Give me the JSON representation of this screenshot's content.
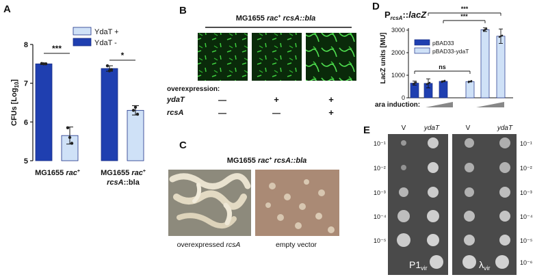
{
  "panels": {
    "A": {
      "letter": "A"
    },
    "B": {
      "letter": "B",
      "title": "MG1655 rac⁺ rcsA::bla",
      "row_header": "overexpression:",
      "rows": [
        {
          "label": "ydaT",
          "marks": [
            "—",
            "+",
            "+"
          ]
        },
        {
          "label": "rcsA",
          "marks": [
            "—",
            "—",
            "+"
          ]
        }
      ]
    },
    "C": {
      "letter": "C",
      "title": "MG1655 rac⁺ rcsA::bla",
      "captions": [
        "overexpressed rcsA",
        "empty vector"
      ]
    },
    "D": {
      "letter": "D"
    },
    "E": {
      "letter": "E",
      "col_labels": [
        "V",
        "ydaT",
        "V",
        "ydaT"
      ],
      "dilutions_left": [
        "10⁻¹",
        "10⁻²",
        "10⁻³",
        "10⁻⁴",
        "10⁻⁵"
      ],
      "dilutions_right": [
        "10⁻¹",
        "10⁻²",
        "10⁻³",
        "10⁻⁴",
        "10⁻⁵",
        "10⁻⁶"
      ],
      "phage_left": "P1vir",
      "phage_right": "λvir"
    }
  },
  "chart_data": [
    {
      "type": "bar",
      "panel": "A",
      "ylabel": "CFUs [Log10]",
      "ylim": [
        5,
        8
      ],
      "yticks": [
        "5",
        "6",
        "7",
        "8"
      ],
      "categories": [
        "MG1655 rac⁺",
        "MG1655 rac⁺ rcsA::bla"
      ],
      "series": [
        {
          "name": "YdaT +",
          "color": "#cfe1f7",
          "values": [
            5.65,
            6.3
          ],
          "errors": [
            0.22,
            0.12
          ],
          "points": [
            [
              5.85,
              5.6,
              5.45
            ],
            [
              6.3,
              6.38,
              6.2
            ]
          ]
        },
        {
          "name": "YdaT -",
          "color": "#1f3fb0",
          "values": [
            7.5,
            7.38
          ],
          "errors": [
            0.02,
            0.07
          ],
          "points": [
            [
              7.51,
              7.5,
              7.5
            ],
            [
              7.45,
              7.32,
              7.35
            ]
          ]
        }
      ],
      "significance": [
        "***",
        "*"
      ]
    },
    {
      "type": "bar",
      "panel": "D",
      "title": "PrcsA::lacZ",
      "ylabel": "LacZ units [MU]",
      "ylim": [
        0,
        3000
      ],
      "yticks": [
        "0",
        "1000",
        "2000",
        "3000"
      ],
      "xlabel": "ara induction:",
      "legend": [
        "pBAD33",
        "pBAD33-ydaT"
      ],
      "groups": [
        {
          "name": "pBAD33",
          "color": "#1f3fb0",
          "values": [
            650,
            640,
            730
          ],
          "errors": [
            90,
            200,
            20
          ]
        },
        {
          "name": "pBAD33-ydaT",
          "color": "#cfe1f7",
          "values": [
            720,
            3020,
            2730
          ],
          "errors": [
            20,
            80,
            320
          ]
        }
      ],
      "significance": [
        "ns",
        "***",
        "***"
      ]
    }
  ]
}
